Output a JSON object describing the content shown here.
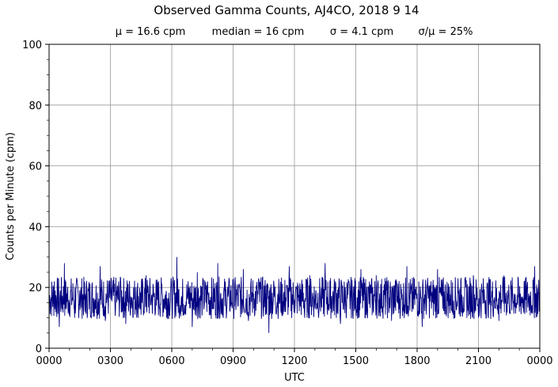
{
  "chart_data": {
    "type": "line",
    "title": "Observed Gamma Counts, AJ4CO, 2018 9 14",
    "subtitle": {
      "mean": "μ = 16.6 cpm",
      "median": "median = 16 cpm",
      "sigma": "σ = 4.1 cpm",
      "ratio": "σ/μ = 25%"
    },
    "xlabel": "UTC",
    "ylabel": "Counts per Minute (cpm)",
    "xlim_minutes": [
      0,
      1440
    ],
    "ylim": [
      0,
      100
    ],
    "x_ticks": [
      {
        "minute": 0,
        "label": "0000"
      },
      {
        "minute": 180,
        "label": "0300"
      },
      {
        "minute": 360,
        "label": "0600"
      },
      {
        "minute": 540,
        "label": "0900"
      },
      {
        "minute": 720,
        "label": "1200"
      },
      {
        "minute": 900,
        "label": "1500"
      },
      {
        "minute": 1080,
        "label": "1800"
      },
      {
        "minute": 1260,
        "label": "2100"
      },
      {
        "minute": 1440,
        "label": "0000"
      }
    ],
    "y_ticks": [
      {
        "value": 0,
        "label": "0"
      },
      {
        "value": 20,
        "label": "20"
      },
      {
        "value": 40,
        "label": "40"
      },
      {
        "value": 60,
        "label": "60"
      },
      {
        "value": 80,
        "label": "80"
      },
      {
        "value": 100,
        "label": "100"
      }
    ],
    "grid": true,
    "series": [
      {
        "color": "#000080",
        "x_minutes": [
          0,
          15,
          30,
          45,
          60,
          75,
          90,
          105,
          120,
          135,
          150,
          165,
          180,
          195,
          210,
          225,
          240,
          255,
          270,
          285,
          300,
          315,
          330,
          345,
          360,
          375,
          390,
          405,
          420,
          435,
          450,
          465,
          480,
          495,
          510,
          525,
          540,
          555,
          570,
          585,
          600,
          615,
          630,
          645,
          660,
          675,
          690,
          705,
          720,
          735,
          750,
          765,
          780,
          795,
          810,
          825,
          840,
          855,
          870,
          885,
          900,
          915,
          930,
          945,
          960,
          975,
          990,
          1005,
          1020,
          1035,
          1050,
          1065,
          1080,
          1095,
          1110,
          1125,
          1140,
          1155,
          1170,
          1185,
          1200,
          1215,
          1230,
          1245,
          1260,
          1275,
          1290,
          1305,
          1320,
          1335,
          1350,
          1365,
          1380,
          1395,
          1410,
          1425,
          1440
        ],
        "values": [
          14,
          22,
          7,
          28,
          15,
          10,
          19,
          12,
          21,
          16,
          27,
          9,
          18,
          13,
          23,
          8,
          17,
          20,
          11,
          24,
          16,
          14,
          21,
          10,
          19,
          30,
          12,
          18,
          7,
          25,
          16,
          22,
          13,
          28,
          11,
          17,
          20,
          14,
          26,
          9,
          18,
          23,
          15,
          5,
          21,
          17,
          12,
          27,
          16,
          19,
          10,
          24,
          14,
          18,
          28,
          13,
          22,
          8,
          17,
          20,
          15,
          26,
          11,
          18,
          24,
          14,
          19,
          9,
          22,
          16,
          27,
          12,
          18,
          7,
          21,
          15,
          26,
          13,
          18,
          11,
          23,
          17,
          14,
          24,
          10,
          19,
          22,
          16,
          9,
          24,
          14,
          18,
          12,
          22,
          16,
          27,
          15
        ]
      }
    ]
  }
}
